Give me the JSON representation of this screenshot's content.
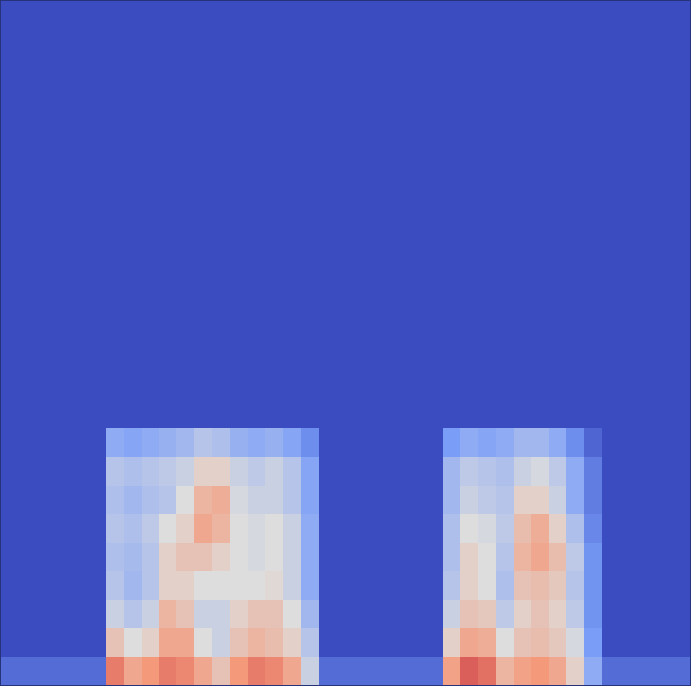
{
  "chart_data": {
    "type": "heatmap",
    "tick_labels": false,
    "zlim": [
      0,
      100
    ],
    "cells": [
      [
        0,
        0,
        0,
        0,
        0,
        0,
        0,
        0,
        0,
        0,
        0,
        0,
        0,
        0,
        0,
        0,
        0,
        0,
        0,
        0,
        0,
        0,
        0,
        0,
        0,
        0,
        0,
        0,
        0,
        0,
        0,
        0,
        0,
        0,
        0,
        0,
        0,
        0,
        0
      ],
      [
        0,
        0,
        0,
        0,
        0,
        0,
        0,
        0,
        0,
        0,
        0,
        0,
        0,
        0,
        0,
        0,
        0,
        0,
        0,
        0,
        0,
        0,
        0,
        0,
        0,
        0,
        0,
        0,
        0,
        0,
        0,
        0,
        0,
        0,
        0,
        0,
        0,
        0,
        0
      ],
      [
        0,
        0,
        0,
        0,
        0,
        0,
        0,
        0,
        0,
        0,
        0,
        0,
        0,
        0,
        0,
        0,
        0,
        0,
        0,
        0,
        0,
        0,
        0,
        0,
        0,
        0,
        0,
        0,
        0,
        0,
        0,
        0,
        0,
        0,
        0,
        0,
        0,
        0,
        0
      ],
      [
        0,
        0,
        0,
        0,
        0,
        0,
        0,
        0,
        0,
        0,
        0,
        0,
        0,
        0,
        0,
        0,
        0,
        0,
        0,
        0,
        0,
        0,
        0,
        0,
        0,
        0,
        0,
        0,
        0,
        0,
        0,
        0,
        0,
        0,
        0,
        0,
        0,
        0,
        0
      ],
      [
        0,
        0,
        0,
        0,
        0,
        0,
        0,
        0,
        0,
        0,
        0,
        0,
        0,
        0,
        0,
        0,
        0,
        0,
        0,
        0,
        0,
        0,
        0,
        0,
        0,
        0,
        0,
        0,
        0,
        0,
        0,
        0,
        0,
        0,
        0,
        0,
        0,
        0,
        0
      ],
      [
        0,
        0,
        0,
        0,
        0,
        0,
        0,
        0,
        0,
        0,
        0,
        0,
        0,
        0,
        0,
        0,
        0,
        0,
        0,
        0,
        0,
        0,
        0,
        0,
        0,
        0,
        0,
        0,
        0,
        0,
        0,
        0,
        0,
        0,
        0,
        0,
        0,
        0,
        0
      ],
      [
        0,
        0,
        0,
        0,
        0,
        0,
        0,
        0,
        0,
        0,
        0,
        0,
        0,
        0,
        0,
        0,
        0,
        0,
        0,
        0,
        0,
        0,
        0,
        0,
        0,
        0,
        0,
        0,
        0,
        0,
        0,
        0,
        0,
        0,
        0,
        0,
        0,
        0,
        0
      ],
      [
        0,
        0,
        0,
        0,
        0,
        0,
        0,
        0,
        0,
        0,
        0,
        0,
        0,
        0,
        0,
        0,
        0,
        0,
        0,
        0,
        0,
        0,
        0,
        0,
        0,
        0,
        0,
        0,
        0,
        0,
        0,
        0,
        0,
        0,
        0,
        0,
        0,
        0,
        0
      ],
      [
        0,
        0,
        0,
        0,
        0,
        0,
        0,
        0,
        0,
        0,
        0,
        0,
        0,
        0,
        0,
        0,
        0,
        0,
        0,
        0,
        0,
        0,
        0,
        0,
        0,
        0,
        0,
        0,
        0,
        0,
        0,
        0,
        0,
        0,
        0,
        0,
        0,
        0,
        0
      ],
      [
        0,
        0,
        0,
        0,
        0,
        0,
        0,
        0,
        0,
        0,
        0,
        0,
        0,
        0,
        0,
        0,
        0,
        0,
        0,
        0,
        0,
        0,
        0,
        0,
        0,
        0,
        0,
        0,
        0,
        0,
        0,
        0,
        0,
        0,
        0,
        0,
        0,
        0,
        0
      ],
      [
        0,
        0,
        0,
        0,
        0,
        0,
        0,
        0,
        0,
        0,
        0,
        0,
        0,
        0,
        0,
        0,
        0,
        0,
        0,
        0,
        0,
        0,
        0,
        0,
        0,
        0,
        0,
        0,
        0,
        0,
        0,
        0,
        0,
        0,
        0,
        0,
        0,
        0,
        0
      ],
      [
        0,
        0,
        0,
        0,
        0,
        0,
        0,
        0,
        0,
        0,
        0,
        0,
        0,
        0,
        0,
        0,
        0,
        0,
        0,
        0,
        0,
        0,
        0,
        0,
        0,
        0,
        0,
        0,
        0,
        0,
        0,
        0,
        0,
        0,
        0,
        0,
        0,
        0,
        0
      ],
      [
        0,
        0,
        0,
        0,
        0,
        0,
        0,
        0,
        0,
        0,
        0,
        0,
        0,
        0,
        0,
        0,
        0,
        0,
        0,
        0,
        0,
        0,
        0,
        0,
        0,
        0,
        0,
        0,
        0,
        0,
        0,
        0,
        0,
        0,
        0,
        0,
        0,
        0,
        0
      ],
      [
        0,
        0,
        0,
        0,
        0,
        0,
        0,
        0,
        0,
        0,
        0,
        0,
        0,
        0,
        0,
        0,
        0,
        0,
        0,
        0,
        0,
        0,
        0,
        0,
        0,
        0,
        0,
        0,
        0,
        0,
        0,
        0,
        0,
        0,
        0,
        0,
        0,
        0,
        0
      ],
      [
        0,
        0,
        0,
        0,
        0,
        0,
        0,
        0,
        0,
        0,
        0,
        0,
        0,
        0,
        0,
        0,
        0,
        0,
        0,
        0,
        0,
        0,
        0,
        0,
        0,
        0,
        0,
        0,
        0,
        0,
        0,
        0,
        0,
        0,
        0,
        0,
        0,
        0,
        0
      ],
      [
        0,
        0,
        0,
        0,
        0,
        0,
        30,
        28,
        30,
        32,
        35,
        40,
        38,
        32,
        30,
        32,
        28,
        20,
        0,
        0,
        0,
        0,
        0,
        0,
        0,
        25,
        30,
        28,
        30,
        35,
        35,
        30,
        20,
        8,
        0,
        0,
        0,
        0,
        0
      ],
      [
        0,
        0,
        0,
        0,
        0,
        0,
        40,
        38,
        40,
        42,
        45,
        55,
        55,
        45,
        42,
        45,
        40,
        28,
        0,
        0,
        0,
        0,
        0,
        0,
        0,
        35,
        42,
        40,
        38,
        45,
        48,
        42,
        30,
        15,
        0,
        0,
        0,
        0,
        0
      ],
      [
        0,
        0,
        0,
        0,
        0,
        0,
        38,
        35,
        38,
        40,
        50,
        65,
        68,
        48,
        45,
        45,
        40,
        28,
        0,
        0,
        0,
        0,
        0,
        0,
        0,
        35,
        45,
        42,
        40,
        55,
        55,
        45,
        30,
        15,
        0,
        0,
        0,
        0,
        0
      ],
      [
        0,
        0,
        0,
        0,
        0,
        0,
        40,
        38,
        42,
        50,
        55,
        70,
        65,
        50,
        48,
        50,
        45,
        30,
        0,
        0,
        0,
        0,
        0,
        0,
        0,
        38,
        50,
        48,
        42,
        62,
        68,
        55,
        38,
        18,
        0,
        0,
        0,
        0,
        0
      ],
      [
        0,
        0,
        0,
        0,
        0,
        0,
        38,
        36,
        40,
        55,
        60,
        60,
        55,
        50,
        48,
        50,
        45,
        30,
        0,
        0,
        0,
        0,
        0,
        0,
        0,
        38,
        55,
        50,
        40,
        65,
        70,
        62,
        42,
        22,
        0,
        0,
        0,
        0,
        0
      ],
      [
        0,
        0,
        0,
        0,
        0,
        0,
        40,
        35,
        40,
        55,
        55,
        50,
        50,
        50,
        50,
        52,
        45,
        30,
        0,
        0,
        0,
        0,
        0,
        0,
        0,
        40,
        55,
        50,
        38,
        60,
        62,
        58,
        40,
        22,
        0,
        0,
        0,
        0,
        0
      ],
      [
        0,
        0,
        0,
        0,
        0,
        0,
        45,
        40,
        45,
        65,
        60,
        45,
        45,
        55,
        60,
        60,
        50,
        35,
        0,
        0,
        0,
        0,
        0,
        0,
        0,
        45,
        60,
        58,
        42,
        55,
        60,
        55,
        42,
        22,
        0,
        0,
        0,
        0,
        0
      ],
      [
        0,
        0,
        0,
        0,
        0,
        0,
        60,
        50,
        55,
        70,
        70,
        50,
        45,
        60,
        65,
        62,
        55,
        40,
        0,
        0,
        0,
        0,
        0,
        0,
        0,
        55,
        70,
        68,
        50,
        60,
        62,
        58,
        48,
        25,
        0,
        0,
        0,
        0,
        0
      ],
      [
        10,
        10,
        10,
        10,
        10,
        10,
        80,
        70,
        75,
        80,
        78,
        70,
        60,
        75,
        80,
        78,
        70,
        45,
        10,
        10,
        10,
        10,
        10,
        10,
        10,
        72,
        85,
        82,
        65,
        72,
        75,
        70,
        55,
        30,
        10,
        10,
        10,
        10,
        10
      ]
    ]
  }
}
